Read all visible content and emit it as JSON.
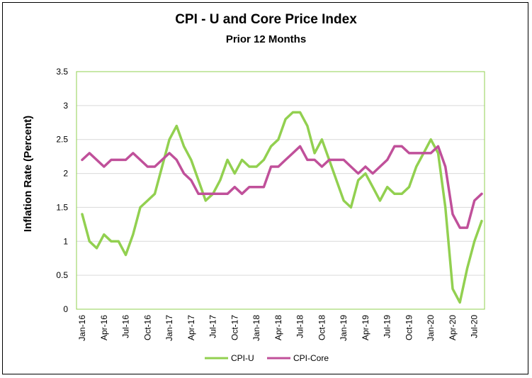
{
  "chart_data": {
    "type": "line",
    "title": "CPI - U and Core Price Index",
    "subtitle": "Prior 12 Months",
    "xlabel": "",
    "ylabel": "Inflation Rate (Percent)",
    "ylim": [
      0,
      3.5
    ],
    "yticks": [
      "0",
      "0.5",
      "1",
      "1.5",
      "2",
      "2.5",
      "3",
      "3.5"
    ],
    "x": [
      "Jan-16",
      "Feb-16",
      "Mar-16",
      "Apr-16",
      "May-16",
      "Jun-16",
      "Jul-16",
      "Aug-16",
      "Sep-16",
      "Oct-16",
      "Nov-16",
      "Dec-16",
      "Jan-17",
      "Feb-17",
      "Mar-17",
      "Apr-17",
      "May-17",
      "Jun-17",
      "Jul-17",
      "Aug-17",
      "Sep-17",
      "Oct-17",
      "Nov-17",
      "Dec-17",
      "Jan-18",
      "Feb-18",
      "Mar-18",
      "Apr-18",
      "May-18",
      "Jun-18",
      "Jul-18",
      "Aug-18",
      "Sep-18",
      "Oct-18",
      "Nov-18",
      "Dec-18",
      "Jan-19",
      "Feb-19",
      "Mar-19",
      "Apr-19",
      "May-19",
      "Jun-19",
      "Jul-19",
      "Aug-19",
      "Sep-19",
      "Oct-19",
      "Nov-19",
      "Dec-19",
      "Jan-20",
      "Feb-20",
      "Mar-20",
      "Apr-20",
      "May-20",
      "Jun-20",
      "Jul-20",
      "Aug-20"
    ],
    "xtick_labels": [
      "Jan-16",
      "Apr-16",
      "Jul-16",
      "Oct-16",
      "Jan-17",
      "Apr-17",
      "Jul-17",
      "Oct-17",
      "Jan-18",
      "Apr-18",
      "Jul-18",
      "Oct-18",
      "Jan-19",
      "Apr-19",
      "Jul-19",
      "Oct-19",
      "Jan-20",
      "Apr-20",
      "Jul-20"
    ],
    "series": [
      {
        "name": "CPI-U",
        "color": "#92d050",
        "values": [
          1.4,
          1.0,
          0.9,
          1.1,
          1.0,
          1.0,
          0.8,
          1.1,
          1.5,
          1.6,
          1.7,
          2.1,
          2.5,
          2.7,
          2.4,
          2.2,
          1.9,
          1.6,
          1.7,
          1.9,
          2.2,
          2.0,
          2.2,
          2.1,
          2.1,
          2.2,
          2.4,
          2.5,
          2.8,
          2.9,
          2.9,
          2.7,
          2.3,
          2.5,
          2.2,
          1.9,
          1.6,
          1.5,
          1.9,
          2.0,
          1.8,
          1.6,
          1.8,
          1.7,
          1.7,
          1.8,
          2.1,
          2.3,
          2.5,
          2.3,
          1.5,
          0.3,
          0.1,
          0.6,
          1.0,
          1.3
        ]
      },
      {
        "name": "CPI-Core",
        "color": "#c0509a",
        "values": [
          2.2,
          2.3,
          2.2,
          2.1,
          2.2,
          2.2,
          2.2,
          2.3,
          2.2,
          2.1,
          2.1,
          2.2,
          2.3,
          2.2,
          2.0,
          1.9,
          1.7,
          1.7,
          1.7,
          1.7,
          1.7,
          1.8,
          1.7,
          1.8,
          1.8,
          1.8,
          2.1,
          2.1,
          2.2,
          2.3,
          2.4,
          2.2,
          2.2,
          2.1,
          2.2,
          2.2,
          2.2,
          2.1,
          2.0,
          2.1,
          2.0,
          2.1,
          2.2,
          2.4,
          2.4,
          2.3,
          2.3,
          2.3,
          2.3,
          2.4,
          2.1,
          1.4,
          1.2,
          1.2,
          1.6,
          1.7
        ]
      }
    ],
    "legend": "bottom",
    "grid": true
  }
}
